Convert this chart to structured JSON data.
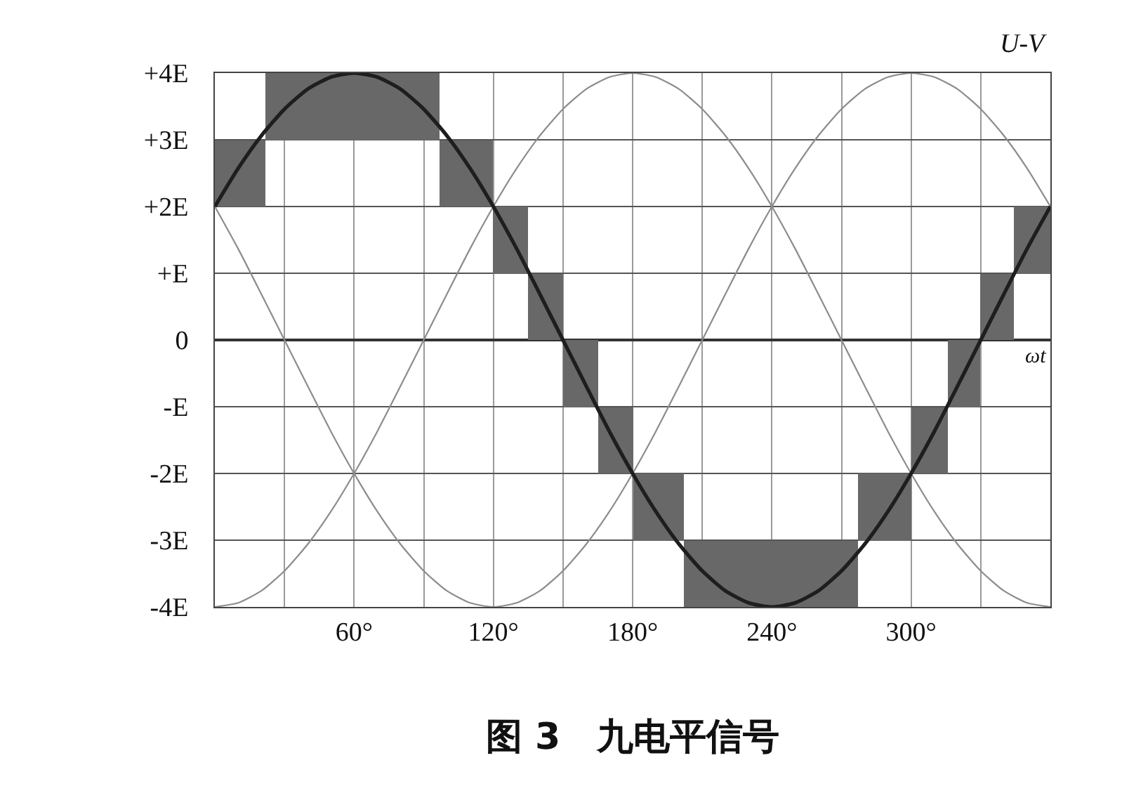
{
  "chart_data": {
    "type": "line",
    "title": "图 3　九电平信号",
    "xlabel": "ωt",
    "ylabel": "U-V",
    "x": [
      0,
      10,
      20,
      30,
      40,
      50,
      60,
      70,
      80,
      90,
      100,
      110,
      120,
      130,
      140,
      150,
      160,
      170,
      180,
      190,
      200,
      210,
      220,
      230,
      240,
      250,
      260,
      270,
      280,
      290,
      300,
      310,
      320,
      330,
      340,
      350,
      360
    ],
    "series": [
      {
        "type": "bar",
        "color": "#686868",
        "x": [
          11,
          59.5,
          108.5,
          127.5,
          142.5,
          157.5,
          172.5,
          191,
          239.5,
          288.5,
          308,
          323,
          337,
          352
        ],
        "base": [
          2,
          3,
          2,
          1,
          0,
          -1,
          -2,
          -3,
          -4,
          -3,
          -2,
          -1,
          0,
          1
        ],
        "values": [
          1,
          1,
          1,
          1,
          1,
          1,
          1,
          1,
          1,
          1,
          1,
          1,
          1,
          1
        ]
      },
      {
        "color": "#8c8c8c",
        "values": [
          -4,
          -3.94,
          -3.76,
          -3.46,
          -3.06,
          -2.57,
          -2,
          -1.37,
          -0.69,
          0,
          0.69,
          1.37,
          2,
          2.57,
          3.06,
          3.46,
          3.76,
          3.94,
          4,
          3.94,
          3.76,
          3.46,
          3.06,
          2.57,
          2,
          1.37,
          0.69,
          0,
          -0.69,
          -1.37,
          -2,
          -2.57,
          -3.06,
          -3.46,
          -3.76,
          -3.94,
          -4
        ]
      },
      {
        "color": "#8c8c8c",
        "values": [
          2,
          1.37,
          0.69,
          0,
          -0.69,
          -1.37,
          -2,
          -2.57,
          -3.06,
          -3.46,
          -3.76,
          -3.94,
          -4,
          -3.94,
          -3.76,
          -3.46,
          -3.06,
          -2.57,
          -2,
          -1.37,
          -0.69,
          0,
          0.69,
          1.37,
          2,
          2.57,
          3.06,
          3.46,
          3.76,
          3.94,
          4,
          3.94,
          3.76,
          3.46,
          3.06,
          2.57,
          2
        ]
      },
      {
        "color": "#1e1e1e",
        "values": [
          2,
          2.57,
          3.06,
          3.46,
          3.76,
          3.94,
          4,
          3.94,
          3.76,
          3.46,
          3.06,
          2.57,
          2,
          1.37,
          0.69,
          0,
          -0.69,
          -1.37,
          -2,
          -2.57,
          -3.06,
          -3.46,
          -3.76,
          -3.94,
          -4,
          -3.94,
          -3.76,
          -3.46,
          -3.06,
          -2.57,
          -2,
          -1.37,
          -0.69,
          0,
          0.69,
          1.37,
          2
        ]
      }
    ],
    "xlim": [
      0,
      360
    ],
    "xticks": [
      {
        "value": 0,
        "label": null
      },
      {
        "value": 30,
        "label": null
      },
      {
        "value": 60,
        "label": "60°"
      },
      {
        "value": 90,
        "label": null
      },
      {
        "value": 120,
        "label": "120°"
      },
      {
        "value": 150,
        "label": null
      },
      {
        "value": 180,
        "label": "180°"
      },
      {
        "value": 210,
        "label": null
      },
      {
        "value": 240,
        "label": "240°"
      },
      {
        "value": 270,
        "label": null
      },
      {
        "value": 300,
        "label": "300°"
      },
      {
        "value": 330,
        "label": null
      },
      {
        "value": 360,
        "label": null
      }
    ],
    "ylim": [
      -4,
      4
    ],
    "yticks": [
      {
        "value": 4,
        "label": "+4E"
      },
      {
        "value": 3,
        "label": "+3E"
      },
      {
        "value": 2,
        "label": "+2E"
      },
      {
        "value": 1,
        "label": "+E"
      },
      0,
      {
        "value": -1,
        "label": "-E"
      },
      {
        "value": -2,
        "label": "-2E"
      },
      {
        "value": -3,
        "label": "-3E"
      },
      {
        "value": -4,
        "label": "-4E"
      }
    ],
    "grid": true,
    "marker": "none",
    "line_style": "solid"
  }
}
